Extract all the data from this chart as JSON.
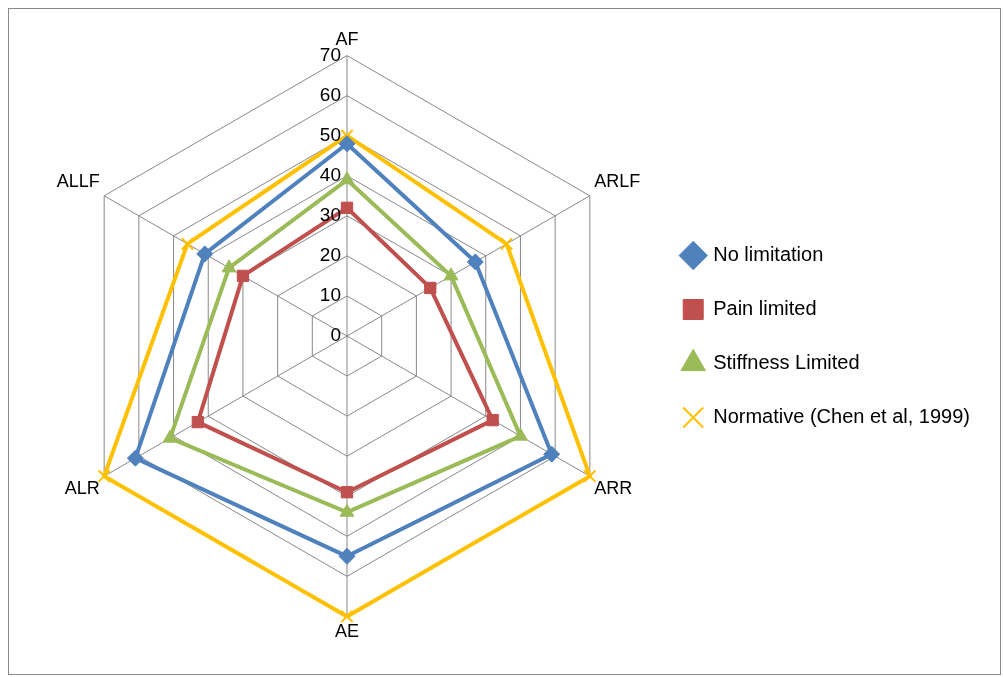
{
  "chart_data": {
    "type": "radar",
    "categories": [
      "AF",
      "ARLF",
      "ARR",
      "AE",
      "ALR",
      "ALLF"
    ],
    "series": [
      {
        "name": "No limitation",
        "color": "#4f81bd",
        "marker": "diamond",
        "values": [
          48,
          37,
          59,
          55,
          61,
          41
        ]
      },
      {
        "name": "Pain limited",
        "color": "#c0504d",
        "marker": "square",
        "values": [
          32,
          24,
          42,
          39,
          43,
          30
        ]
      },
      {
        "name": "Stiffness Limited",
        "color": "#9bbb59",
        "marker": "triangle",
        "values": [
          39,
          30,
          50,
          44,
          51,
          34
        ]
      },
      {
        "name": "Normative (Chen et al, 1999)",
        "color": "#ffc000",
        "marker": "cross",
        "values": [
          50,
          46,
          70,
          70,
          70,
          46
        ]
      }
    ],
    "ylim": [
      0,
      70
    ],
    "yticks": [
      0,
      10,
      20,
      30,
      40,
      50,
      60,
      70
    ],
    "grid": true,
    "legend": "right"
  }
}
